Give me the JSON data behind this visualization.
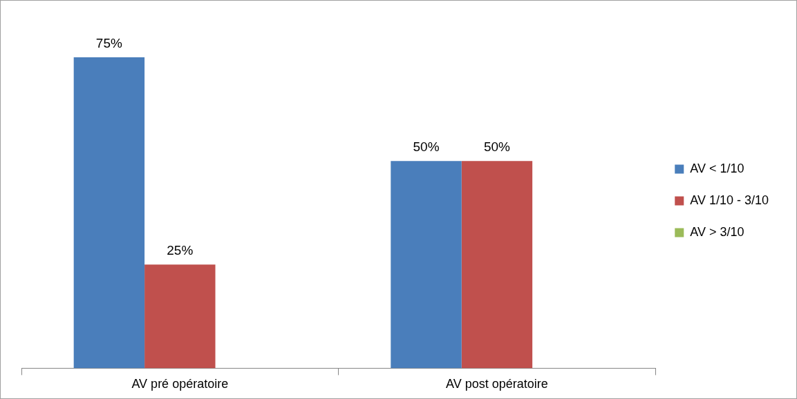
{
  "chart_data": {
    "type": "bar",
    "categories": [
      "AV pré opératoire",
      "AV post opératoire"
    ],
    "series": [
      {
        "name": "AV < 1/10",
        "color": "#4a7ebb",
        "values": [
          75,
          50
        ],
        "value_labels": [
          "75%",
          "50%"
        ]
      },
      {
        "name": "AV 1/10 - 3/10",
        "color": "#c0504d",
        "values": [
          25,
          50
        ],
        "value_labels": [
          "25%",
          "50%"
        ]
      },
      {
        "name": "AV > 3/10",
        "color": "#9bbb59",
        "values": [
          null,
          null
        ]
      }
    ],
    "legend": "right",
    "grid": false
  }
}
